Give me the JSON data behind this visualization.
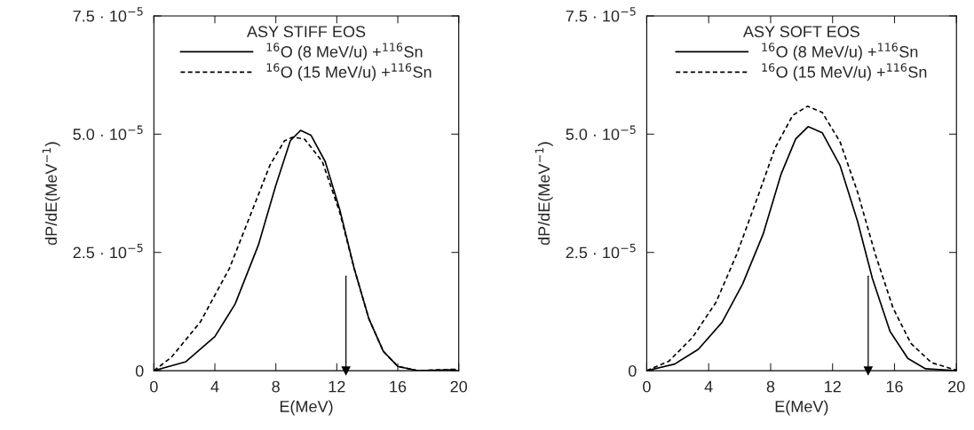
{
  "chart_data": [
    {
      "type": "line",
      "legend_title": "ASY STIFF EOS",
      "xlabel": "E(MeV)",
      "ylabel": "dP/dE(MeV$^{−1}$)",
      "legend": "top",
      "grid": false,
      "xlim": [
        0,
        20
      ],
      "xticks": [
        0,
        4,
        8,
        12,
        16,
        20
      ],
      "ylim": [
        0,
        7.5e-05
      ],
      "yticks": [
        {
          "value": 0,
          "label": "0"
        },
        {
          "value": 2.5e-05,
          "label": "2.5 · 10$^{−5}$"
        },
        {
          "value": 5e-05,
          "label": "5.0 · 10$^{−5}$"
        },
        {
          "value": 7.5e-05,
          "label": "7.5 · 10$^{−5}$"
        }
      ],
      "series": [
        {
          "name": "$^{16}$O (8 MeV/u) +$^{116}$Sn",
          "color": "#000000",
          "line_style": "solid",
          "x": [
            0,
            2.1,
            4.0,
            5.33,
            6.86,
            8.0,
            8.95,
            9.62,
            10.3,
            11.24,
            12.19,
            13.14,
            14.1,
            15.05,
            16.0,
            17.3,
            19.8
          ],
          "values": [
            0,
            1.9e-06,
            7.2e-06,
            1.41e-05,
            2.66e-05,
            3.92e-05,
            4.86e-05,
            5.08e-05,
            4.98e-05,
            4.42e-05,
            3.41e-05,
            2.16e-05,
            1.1e-05,
            4.1e-06,
            9e-07,
            0,
            2e-07
          ]
        },
        {
          "name": "$^{16}$O (15 MeV/u) +$^{116}$Sn",
          "color": "#000000",
          "line_style": "dashed",
          "x": [
            0,
            1.14,
            3.05,
            4.95,
            6.48,
            7.62,
            8.57,
            9.14,
            9.9,
            11.05,
            12.19,
            13.14,
            14.1,
            15.05,
            16.0,
            17.3,
            19.8
          ],
          "values": [
            0,
            2.8e-06,
            1.03e-05,
            2.16e-05,
            3.41e-05,
            4.35e-05,
            4.86e-05,
            4.94e-05,
            4.89e-05,
            4.42e-05,
            3.35e-05,
            2.16e-05,
            1.1e-05,
            4.1e-06,
            9e-07,
            0,
            3e-07
          ]
        },
        {
          "color": "#000000",
          "line_style": "solid",
          "marker": "triangle",
          "x": [
            12.6,
            12.6
          ],
          "values": [
            2e-05,
            0
          ]
        }
      ]
    },
    {
      "type": "line",
      "legend_title": "ASY SOFT EOS",
      "xlabel": "E(MeV)",
      "ylabel": "dP/dE(MeV$^{−1}$)",
      "legend": "top",
      "grid": false,
      "xlim": [
        0,
        20
      ],
      "xticks": [
        0,
        4,
        8,
        12,
        16,
        20
      ],
      "ylim": [
        0,
        7.5e-05
      ],
      "yticks": [
        {
          "value": 0,
          "label": "0"
        },
        {
          "value": 2.5e-05,
          "label": "2.5 · 10$^{−5}$"
        },
        {
          "value": 5e-05,
          "label": "5.0 · 10$^{−5}$"
        },
        {
          "value": 7.5e-05,
          "label": "7.5 · 10$^{−5}$"
        }
      ],
      "series": [
        {
          "name": "$^{16}$O (8 MeV/u) +$^{116}$Sn",
          "color": "#000000",
          "line_style": "solid",
          "x": [
            0,
            1.81,
            3.33,
            4.86,
            6.19,
            7.52,
            8.67,
            9.62,
            10.42,
            11.33,
            12.48,
            13.62,
            14.57,
            15.71,
            16.86,
            18.0,
            20.0
          ],
          "values": [
            0,
            1.4e-06,
            4.5e-06,
            1.02e-05,
            1.83e-05,
            2.89e-05,
            4.15e-05,
            4.9e-05,
            5.16e-05,
            5.03e-05,
            4.34e-05,
            3.15e-05,
            1.95e-05,
            8.3e-06,
            2.6e-06,
            4e-07,
            0
          ]
        },
        {
          "name": "$^{16}$O (15 MeV/u) +$^{116}$Sn",
          "color": "#000000",
          "line_style": "dashed",
          "x": [
            0,
            1.43,
            2.95,
            4.48,
            5.81,
            7.14,
            8.29,
            9.43,
            10.38,
            11.33,
            12.48,
            13.62,
            14.76,
            15.9,
            17.05,
            18.38,
            20.0
          ],
          "values": [
            0,
            2e-06,
            7e-06,
            1.45e-05,
            2.46e-05,
            3.65e-05,
            4.71e-05,
            5.4e-05,
            5.59e-05,
            5.46e-05,
            4.84e-05,
            3.77e-05,
            2.46e-05,
            1.33e-05,
            5.8e-06,
            1.7e-06,
            1e-07
          ]
        },
        {
          "color": "#000000",
          "line_style": "solid",
          "marker": "triangle",
          "x": [
            14.3,
            14.3
          ],
          "values": [
            2e-05,
            0
          ]
        }
      ]
    }
  ]
}
